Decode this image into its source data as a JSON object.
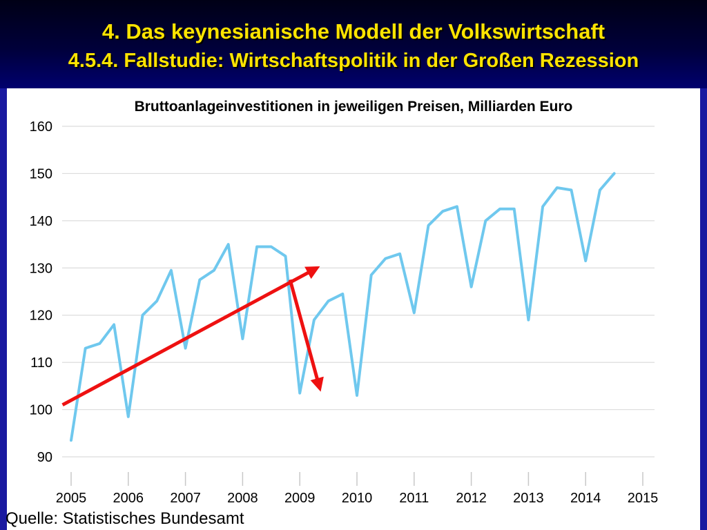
{
  "header": {
    "title": "4. Das keynesianische Modell der Volkswirtschaft",
    "subtitle": "4.5.4.  Fallstudie: Wirtschaftspolitik in der Großen Rezession"
  },
  "source": "Quelle: Statistisches Bundesamt",
  "colors": {
    "header_text": "#ffe400",
    "series": "#6fc8ee",
    "arrows": "#ee1111",
    "frame": "#1a1aa0"
  },
  "chart_data": {
    "type": "line",
    "title": "Bruttoanlageinvestitionen in jeweiligen Preisen, Milliarden Euro",
    "xlabel": "",
    "ylabel": "",
    "xlim": [
      2005,
      2015
    ],
    "ylim": [
      90,
      160
    ],
    "yticks": [
      90,
      100,
      110,
      120,
      130,
      140,
      150,
      160
    ],
    "xticks": [
      "2005",
      "2006",
      "2007",
      "2008",
      "2009",
      "2010",
      "2011",
      "2012",
      "2013",
      "2014",
      "2015"
    ],
    "grid": true,
    "series": [
      {
        "name": "",
        "points": [
          [
            2005.0,
            93.5
          ],
          [
            2005.25,
            113
          ],
          [
            2005.5,
            114
          ],
          [
            2005.75,
            118
          ],
          [
            2006.0,
            98.5
          ],
          [
            2006.25,
            120
          ],
          [
            2006.5,
            123
          ],
          [
            2006.75,
            129.5
          ],
          [
            2007.0,
            113
          ],
          [
            2007.25,
            127.5
          ],
          [
            2007.5,
            129.5
          ],
          [
            2007.75,
            135
          ],
          [
            2008.0,
            115
          ],
          [
            2008.25,
            134.5
          ],
          [
            2008.5,
            134.5
          ],
          [
            2008.75,
            132.5
          ],
          [
            2009.0,
            103.5
          ],
          [
            2009.25,
            119
          ],
          [
            2009.5,
            123
          ],
          [
            2009.75,
            124.5
          ],
          [
            2010.0,
            103
          ],
          [
            2010.25,
            128.5
          ],
          [
            2010.5,
            132
          ],
          [
            2010.75,
            133
          ],
          [
            2011.0,
            120.5
          ],
          [
            2011.25,
            139
          ],
          [
            2011.5,
            142
          ],
          [
            2011.75,
            143
          ],
          [
            2012.0,
            126
          ],
          [
            2012.25,
            140
          ],
          [
            2012.5,
            142.5
          ],
          [
            2012.75,
            142.5
          ],
          [
            2013.0,
            119
          ],
          [
            2013.25,
            143
          ],
          [
            2013.5,
            147
          ],
          [
            2013.75,
            146.5
          ],
          [
            2014.0,
            131.5
          ],
          [
            2014.25,
            146.5
          ],
          [
            2014.5,
            150
          ]
        ]
      }
    ],
    "annotations": [
      {
        "type": "arrow",
        "from": [
          2004.85,
          101
        ],
        "to": [
          2009.3,
          130
        ]
      },
      {
        "type": "arrow",
        "from": [
          2008.83,
          127.5
        ],
        "to": [
          2009.35,
          104.5
        ]
      }
    ]
  }
}
